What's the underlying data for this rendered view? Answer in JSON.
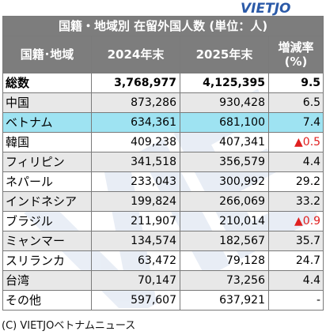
{
  "logo": {
    "text": "VIETJO"
  },
  "table": {
    "title": "国籍・地域別 在留外国人数 (単位：人)",
    "headers": {
      "country": "国籍･地域",
      "year1": "2024年末",
      "year2": "2025年末",
      "rate_line1": "増減率",
      "rate_line2": "(%)"
    },
    "rows": [
      {
        "name": "総数",
        "v2024": "3,768,977",
        "v2025": "4,125,395",
        "rate": "9.5"
      },
      {
        "name": "中国",
        "v2024": "873,286",
        "v2025": "930,428",
        "rate": "6.5"
      },
      {
        "name": "ベトナム",
        "v2024": "634,361",
        "v2025": "681,100",
        "rate": "7.4"
      },
      {
        "name": "韓国",
        "v2024": "409,238",
        "v2025": "407,341",
        "rate": "▲0.5"
      },
      {
        "name": "フィリピン",
        "v2024": "341,518",
        "v2025": "356,579",
        "rate": "4.4"
      },
      {
        "name": "ネパール",
        "v2024": "233,043",
        "v2025": "300,992",
        "rate": "29.2"
      },
      {
        "name": "インドネシア",
        "v2024": "199,824",
        "v2025": "266,069",
        "rate": "33.2"
      },
      {
        "name": "ブラジル",
        "v2024": "211,907",
        "v2025": "210,014",
        "rate": "▲0.9"
      },
      {
        "name": "ミャンマー",
        "v2024": "134,574",
        "v2025": "182,567",
        "rate": "35.7"
      },
      {
        "name": "スリランカ",
        "v2024": "63,472",
        "v2025": "79,128",
        "rate": "24.7"
      },
      {
        "name": "台湾",
        "v2024": "70,147",
        "v2025": "73,256",
        "rate": "4.4"
      },
      {
        "name": "その他",
        "v2024": "597,607",
        "v2025": "637,921",
        "rate": "-"
      }
    ]
  },
  "footer": {
    "credit": "(C) VIETJOベトナムニュース"
  },
  "colors": {
    "header_bg": "#7d7d7d",
    "highlight_row": "#9ee3f2",
    "shaded_row": "#e8e8e8",
    "negative": "#e02020",
    "logo": "#2b5aa8"
  }
}
